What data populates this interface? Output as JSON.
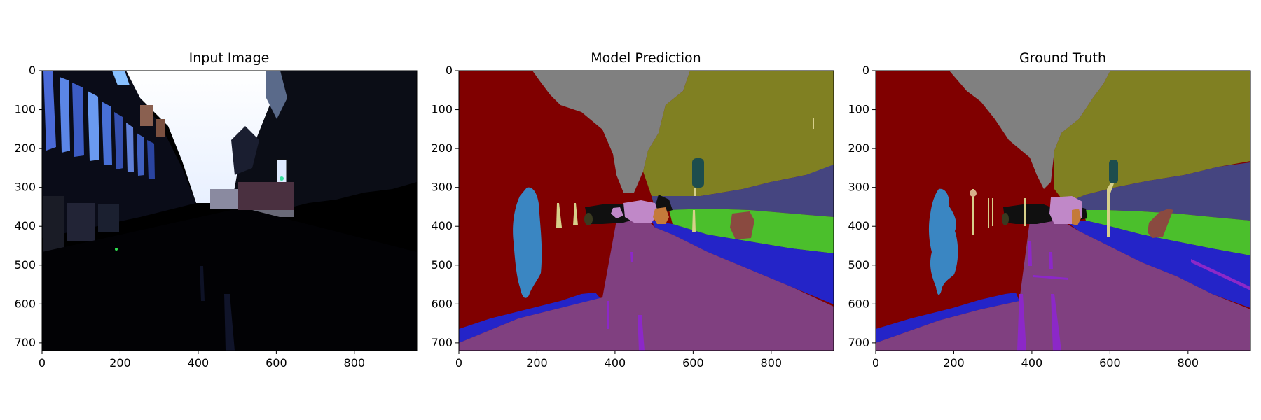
{
  "panels": [
    {
      "title": "Input Image",
      "xticks": [
        "0",
        "200",
        "400",
        "600",
        "800"
      ],
      "yticks": [
        "0",
        "100",
        "200",
        "300",
        "400",
        "500",
        "600",
        "700"
      ]
    },
    {
      "title": "Model Prediction",
      "xticks": [
        "0",
        "200",
        "400",
        "600",
        "800"
      ],
      "yticks": [
        "0",
        "100",
        "200",
        "300",
        "400",
        "500",
        "600",
        "700"
      ]
    },
    {
      "title": "Ground Truth",
      "xticks": [
        "0",
        "200",
        "400",
        "600",
        "800"
      ],
      "yticks": [
        "0",
        "100",
        "200",
        "300",
        "400",
        "500",
        "600",
        "700"
      ]
    }
  ],
  "image_extent": {
    "width": 960,
    "height": 720
  },
  "segmentation_colors": {
    "building": "#800000",
    "sky": "#808080",
    "tree": "#808022",
    "fence": "#404080",
    "grass": "#4bbf2c",
    "sidewalk": "#2424c8",
    "road": "#804080",
    "lane-marking": "#8c28c8",
    "pedestrian": "#3a86c2",
    "pole": "#d7d08a",
    "car": "#c088c8",
    "vehicle-dark": "#101010",
    "traffic-light": "#1d4d4d",
    "sign": "#c47a3a",
    "bush": "#8a4a40"
  }
}
